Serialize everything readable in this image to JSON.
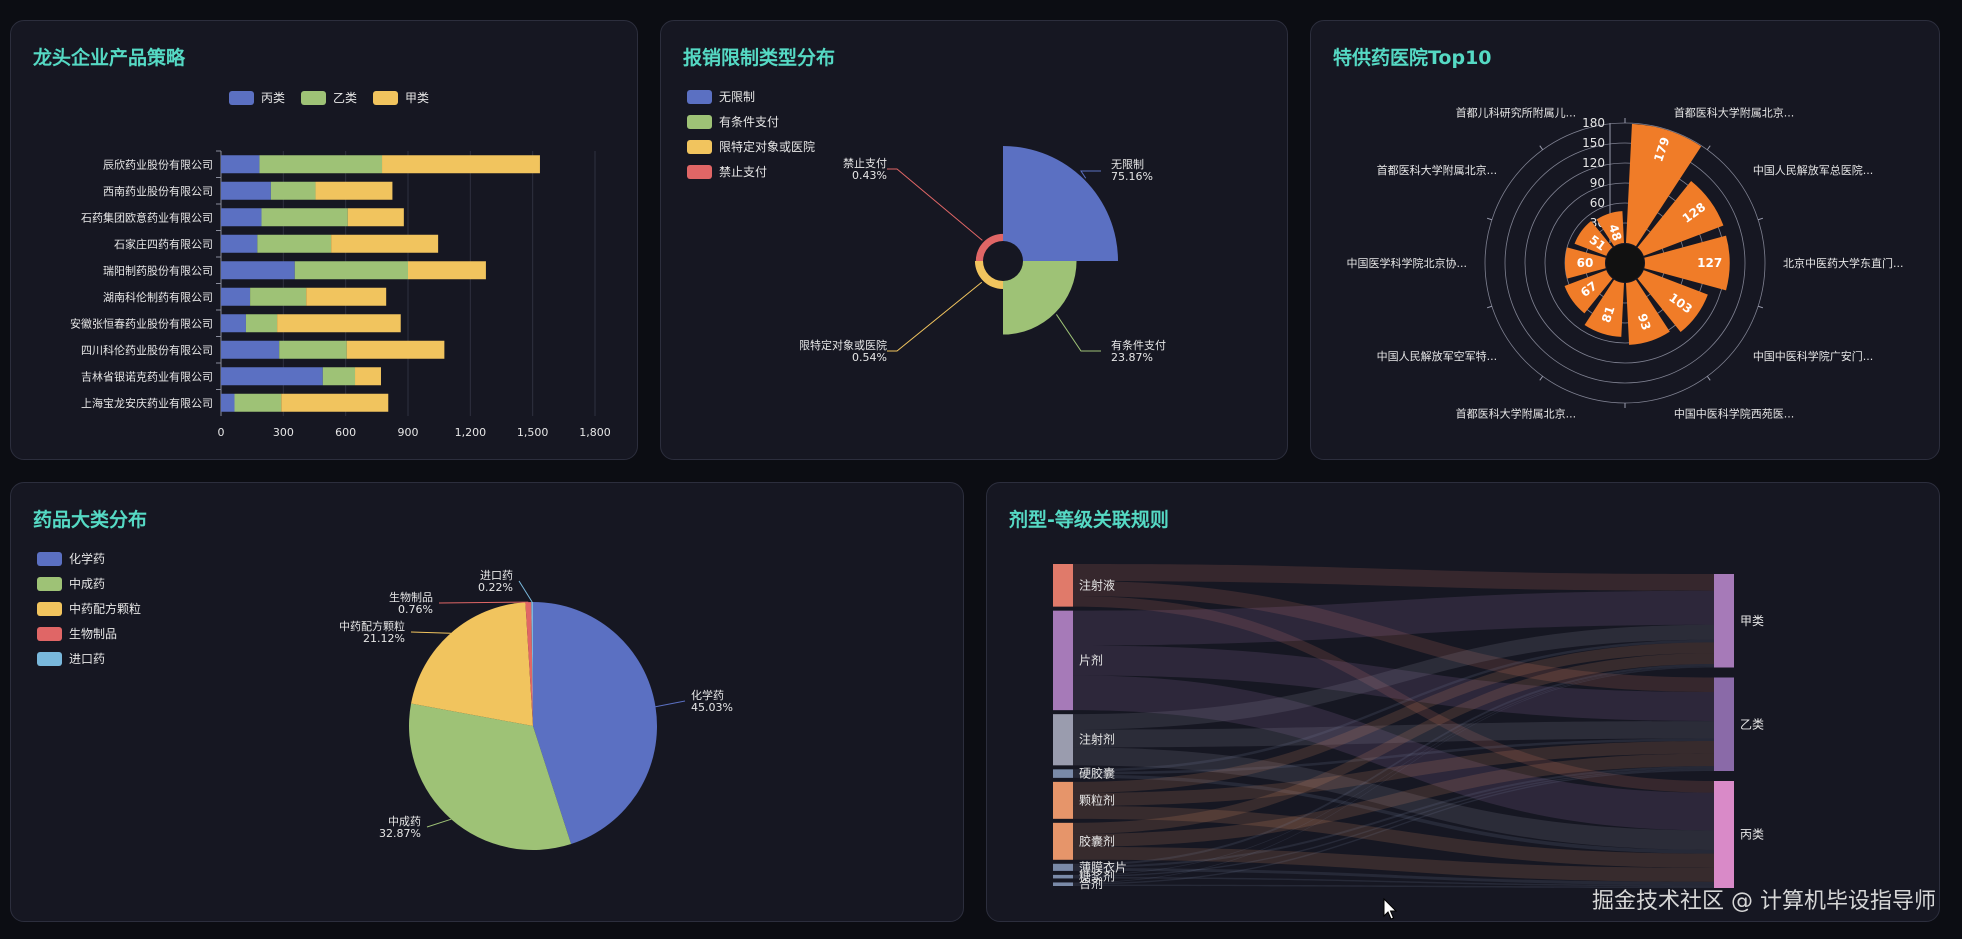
{
  "panels": {
    "p1_title": "龙头企业产品策略",
    "p2_title": "报销限制类型分布",
    "p3_title": "特供药医院Top10",
    "p4_title": "药品大类分布",
    "p5_title": "剂型-等级关联规则"
  },
  "watermark": "掘金技术社区 @ 计算机毕设指导师",
  "chart_data": [
    {
      "id": "company_strategy",
      "type": "bar",
      "orientation": "horizontal",
      "stacked": true,
      "title": "龙头企业产品策略",
      "categories": [
        "辰欣药业股份有限公司",
        "西南药业股份有限公司",
        "石药集团欧意药业有限公司",
        "石家庄四药有限公司",
        "瑞阳制药股份有限公司",
        "湖南科伦制药有限公司",
        "安徽张恒春药业股份有限公司",
        "四川科伦药业股份有限公司",
        "吉林省银诺克药业有限公司",
        "上海宝龙安庆药业有限公司"
      ],
      "series": [
        {
          "name": "丙类",
          "color": "#5b70c2",
          "values": [
            185,
            240,
            195,
            175,
            355,
            140,
            120,
            280,
            490,
            65
          ]
        },
        {
          "name": "乙类",
          "color": "#9ec276",
          "values": [
            590,
            215,
            415,
            355,
            545,
            270,
            150,
            325,
            155,
            225
          ]
        },
        {
          "name": "甲类",
          "color": "#f1c45e",
          "values": [
            760,
            370,
            270,
            515,
            375,
            385,
            595,
            470,
            125,
            515
          ]
        }
      ],
      "xlim": [
        0,
        1800
      ],
      "xticks": [
        "0",
        "300",
        "600",
        "900",
        "1,200",
        "1,500",
        "1,800"
      ],
      "legend": "top-center",
      "grid": true
    },
    {
      "id": "reimburse_restriction",
      "type": "pie",
      "variant": "rose",
      "title": "报销限制类型分布",
      "slices": [
        {
          "name": "无限制",
          "value": 75.16,
          "label": "无限制\n75.16%",
          "color": "#5b70c2"
        },
        {
          "name": "有条件支付",
          "value": 23.87,
          "label": "有条件支付\n23.87%",
          "color": "#9ec276"
        },
        {
          "name": "限特定对象或医院",
          "value": 0.54,
          "label": "限特定对象或医院\n0.54%",
          "color": "#f1c45e"
        },
        {
          "name": "禁止支付",
          "value": 0.43,
          "label": "禁止支付\n0.43%",
          "color": "#e06666"
        }
      ],
      "legend": "top-left"
    },
    {
      "id": "hospital_top10",
      "type": "bar",
      "variant": "polar",
      "title": "特供药医院Top10",
      "color": "#f07c28",
      "radial_ticks": [
        "0",
        "30",
        "60",
        "90",
        "120",
        "150",
        "180"
      ],
      "rlim": [
        0,
        180
      ],
      "categories": [
        "首都医科大学附属北京...",
        "中国人民解放军总医院...",
        "北京中医药大学东直门...",
        "中国中医科学院广安门...",
        "中国中医科学院西苑医...",
        "首都医科大学附属北京...",
        "中国人民解放军空军特...",
        "中国医学科学院北京协...",
        "首都医科大学附属北京...",
        "首都儿科研究所附属儿..."
      ],
      "values": [
        179,
        128,
        127,
        103,
        93,
        81,
        67,
        60,
        51,
        48
      ],
      "value_labels": [
        "179",
        "128",
        "127",
        "103",
        "93",
        "81",
        "67",
        "60",
        "51",
        "48"
      ]
    },
    {
      "id": "drug_category",
      "type": "pie",
      "title": "药品大类分布",
      "slices": [
        {
          "name": "化学药",
          "value": 45.03,
          "label": "化学药\n45.03%",
          "color": "#5b70c2"
        },
        {
          "name": "中成药",
          "value": 32.87,
          "label": "中成药\n32.87%",
          "color": "#9ec276"
        },
        {
          "name": "中药配方颗粒",
          "value": 21.12,
          "label": "中药配方颗粒\n21.12%",
          "color": "#f1c45e"
        },
        {
          "name": "生物制品",
          "value": 0.76,
          "label": "生物制品\n0.76%",
          "color": "#e06666"
        },
        {
          "name": "进口药",
          "value": 0.22,
          "label": "进口药\n0.22%",
          "color": "#79b8dc"
        }
      ],
      "legend": "top-left"
    },
    {
      "id": "form_grade_sankey",
      "type": "sankey",
      "title": "剂型-等级关联规则",
      "source_nodes": [
        {
          "name": "注射液",
          "value": 3.0,
          "color": "#e07a6a"
        },
        {
          "name": "片剂",
          "value": 7.0,
          "color": "#a67ab8"
        },
        {
          "name": "注射剂",
          "value": 3.6,
          "color": "#9a9cae"
        },
        {
          "name": "硬胶囊",
          "value": 0.6,
          "color": "#7a8aa8"
        },
        {
          "name": "颗粒剂",
          "value": 2.6,
          "color": "#e6956a"
        },
        {
          "name": "胶囊剂",
          "value": 2.6,
          "color": "#e6956a"
        },
        {
          "name": "薄膜衣片",
          "value": 0.5,
          "color": "#7a8aa8"
        },
        {
          "name": "糖浆剂",
          "value": 0.25,
          "color": "#7a8aa8"
        },
        {
          "name": "合剂",
          "value": 0.25,
          "color": "#7a8aa8"
        }
      ],
      "target_nodes": [
        {
          "name": "甲类",
          "value": 6.5,
          "color": "#a67ab8"
        },
        {
          "name": "乙类",
          "value": 6.5,
          "color": "#8a6aa8"
        },
        {
          "name": "丙类",
          "value": 7.4,
          "color": "#d98ac8"
        }
      ]
    }
  ]
}
